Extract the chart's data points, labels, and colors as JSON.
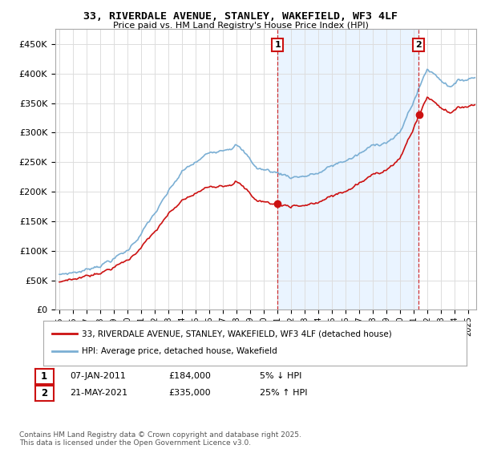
{
  "title": "33, RIVERDALE AVENUE, STANLEY, WAKEFIELD, WF3 4LF",
  "subtitle": "Price paid vs. HM Land Registry's House Price Index (HPI)",
  "ylim": [
    0,
    475000
  ],
  "yticks": [
    0,
    50000,
    100000,
    150000,
    200000,
    250000,
    300000,
    350000,
    400000,
    450000
  ],
  "ytick_labels": [
    "£0",
    "£50K",
    "£100K",
    "£150K",
    "£200K",
    "£250K",
    "£300K",
    "£350K",
    "£400K",
    "£450K"
  ],
  "xlim_start": 1994.7,
  "xlim_end": 2025.6,
  "hpi_color": "#7bafd4",
  "property_color": "#cc1111",
  "shade_color": "#ddeeff",
  "transaction_color": "#cc1111",
  "marker1_x": 2011.03,
  "marker1_y": 184000,
  "marker1_label": "1",
  "marker1_date": "07-JAN-2011",
  "marker1_price": "£184,000",
  "marker1_pct": "5% ↓ HPI",
  "marker2_x": 2021.38,
  "marker2_y": 335000,
  "marker2_label": "2",
  "marker2_date": "21-MAY-2021",
  "marker2_price": "£335,000",
  "marker2_pct": "25% ↑ HPI",
  "legend_line1": "33, RIVERDALE AVENUE, STANLEY, WAKEFIELD, WF3 4LF (detached house)",
  "legend_line2": "HPI: Average price, detached house, Wakefield",
  "footnote": "Contains HM Land Registry data © Crown copyright and database right 2025.\nThis data is licensed under the Open Government Licence v3.0.",
  "bg_color": "#ffffff",
  "grid_color": "#dddddd"
}
